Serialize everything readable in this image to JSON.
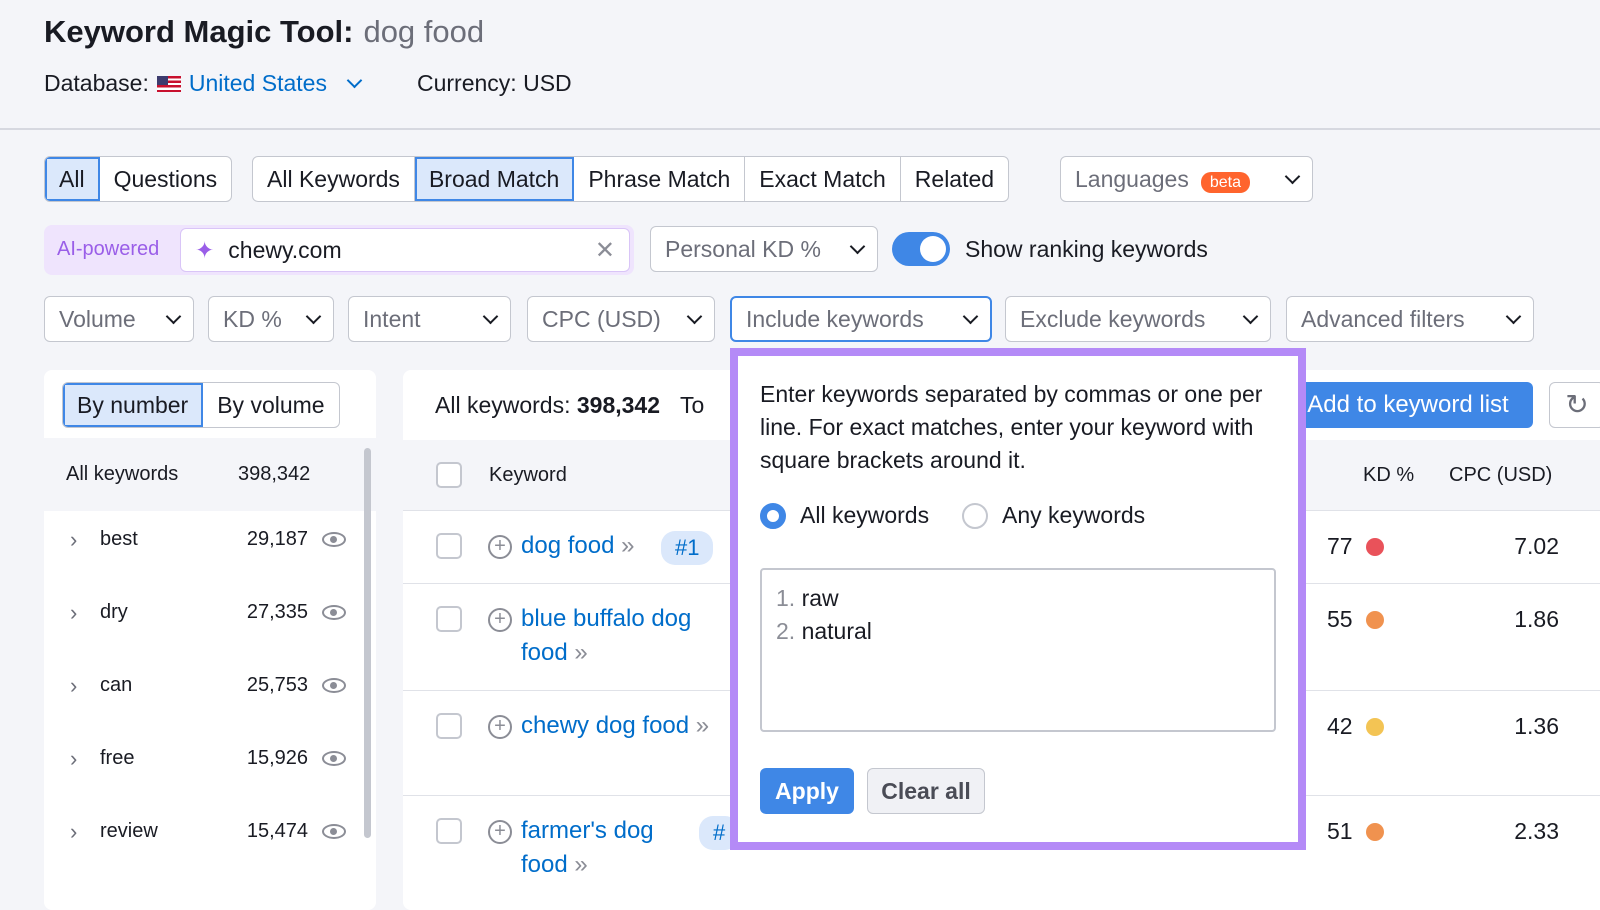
{
  "header": {
    "title": "Keyword Magic Tool:",
    "query": "dog food",
    "database_label": "Database:",
    "database": "United States",
    "currency": "Currency: USD"
  },
  "tabs1": [
    "All",
    "Questions"
  ],
  "tabs2": [
    "All Keywords",
    "Broad Match",
    "Phrase Match",
    "Exact Match",
    "Related"
  ],
  "languages": {
    "label": "Languages",
    "badge": "beta"
  },
  "ai": {
    "label": "AI-powered",
    "value": "chewy.com"
  },
  "personal_kd": "Personal KD %",
  "show_ranking": {
    "label": "Show ranking keywords",
    "on": true
  },
  "filters": [
    "Volume",
    "KD %",
    "Intent",
    "CPC (USD)",
    "Include keywords",
    "Exclude keywords",
    "Advanced filters"
  ],
  "sidebar": {
    "tabs": [
      "By number",
      "By volume"
    ],
    "all_label": "All keywords",
    "all_count": "398,342",
    "items": [
      {
        "label": "best",
        "count": "29,187"
      },
      {
        "label": "dry",
        "count": "27,335"
      },
      {
        "label": "can",
        "count": "25,753"
      },
      {
        "label": "free",
        "count": "15,926"
      },
      {
        "label": "review",
        "count": "15,474"
      }
    ]
  },
  "main": {
    "all_label": "All keywords:",
    "all_count": "398,342",
    "trunc": "To",
    "add_button": "Add to keyword list",
    "columns": {
      "keyword": "Keyword",
      "kd": "KD %",
      "cpc": "CPC (USD)"
    },
    "rows": [
      {
        "kw1": "dog food",
        "kw2": "",
        "badge": "#1",
        "kd": "77",
        "cpc": "7.02",
        "color": "#e9525a"
      },
      {
        "kw1": "blue buffalo dog",
        "kw2": "food",
        "kd": "55",
        "cpc": "1.86",
        "color": "#f0924f"
      },
      {
        "kw1": "chewy dog food",
        "kw2": "",
        "kd": "42",
        "cpc": "1.36",
        "color": "#f3c454"
      },
      {
        "kw1": "farmer's dog",
        "kw2": "food",
        "badge": "#",
        "kd": "51",
        "cpc": "2.33",
        "color": "#f0924f"
      }
    ]
  },
  "popup": {
    "text": "Enter keywords separated by commas or one per line. For exact matches, enter your keyword with square brackets around it.",
    "radio_all": "All keywords",
    "radio_any": "Any keywords",
    "selected": "All keywords",
    "lines": [
      {
        "n": "1.",
        "v": "raw"
      },
      {
        "n": "2.",
        "v": "natural"
      }
    ],
    "apply": "Apply",
    "clear": "Clear all"
  }
}
